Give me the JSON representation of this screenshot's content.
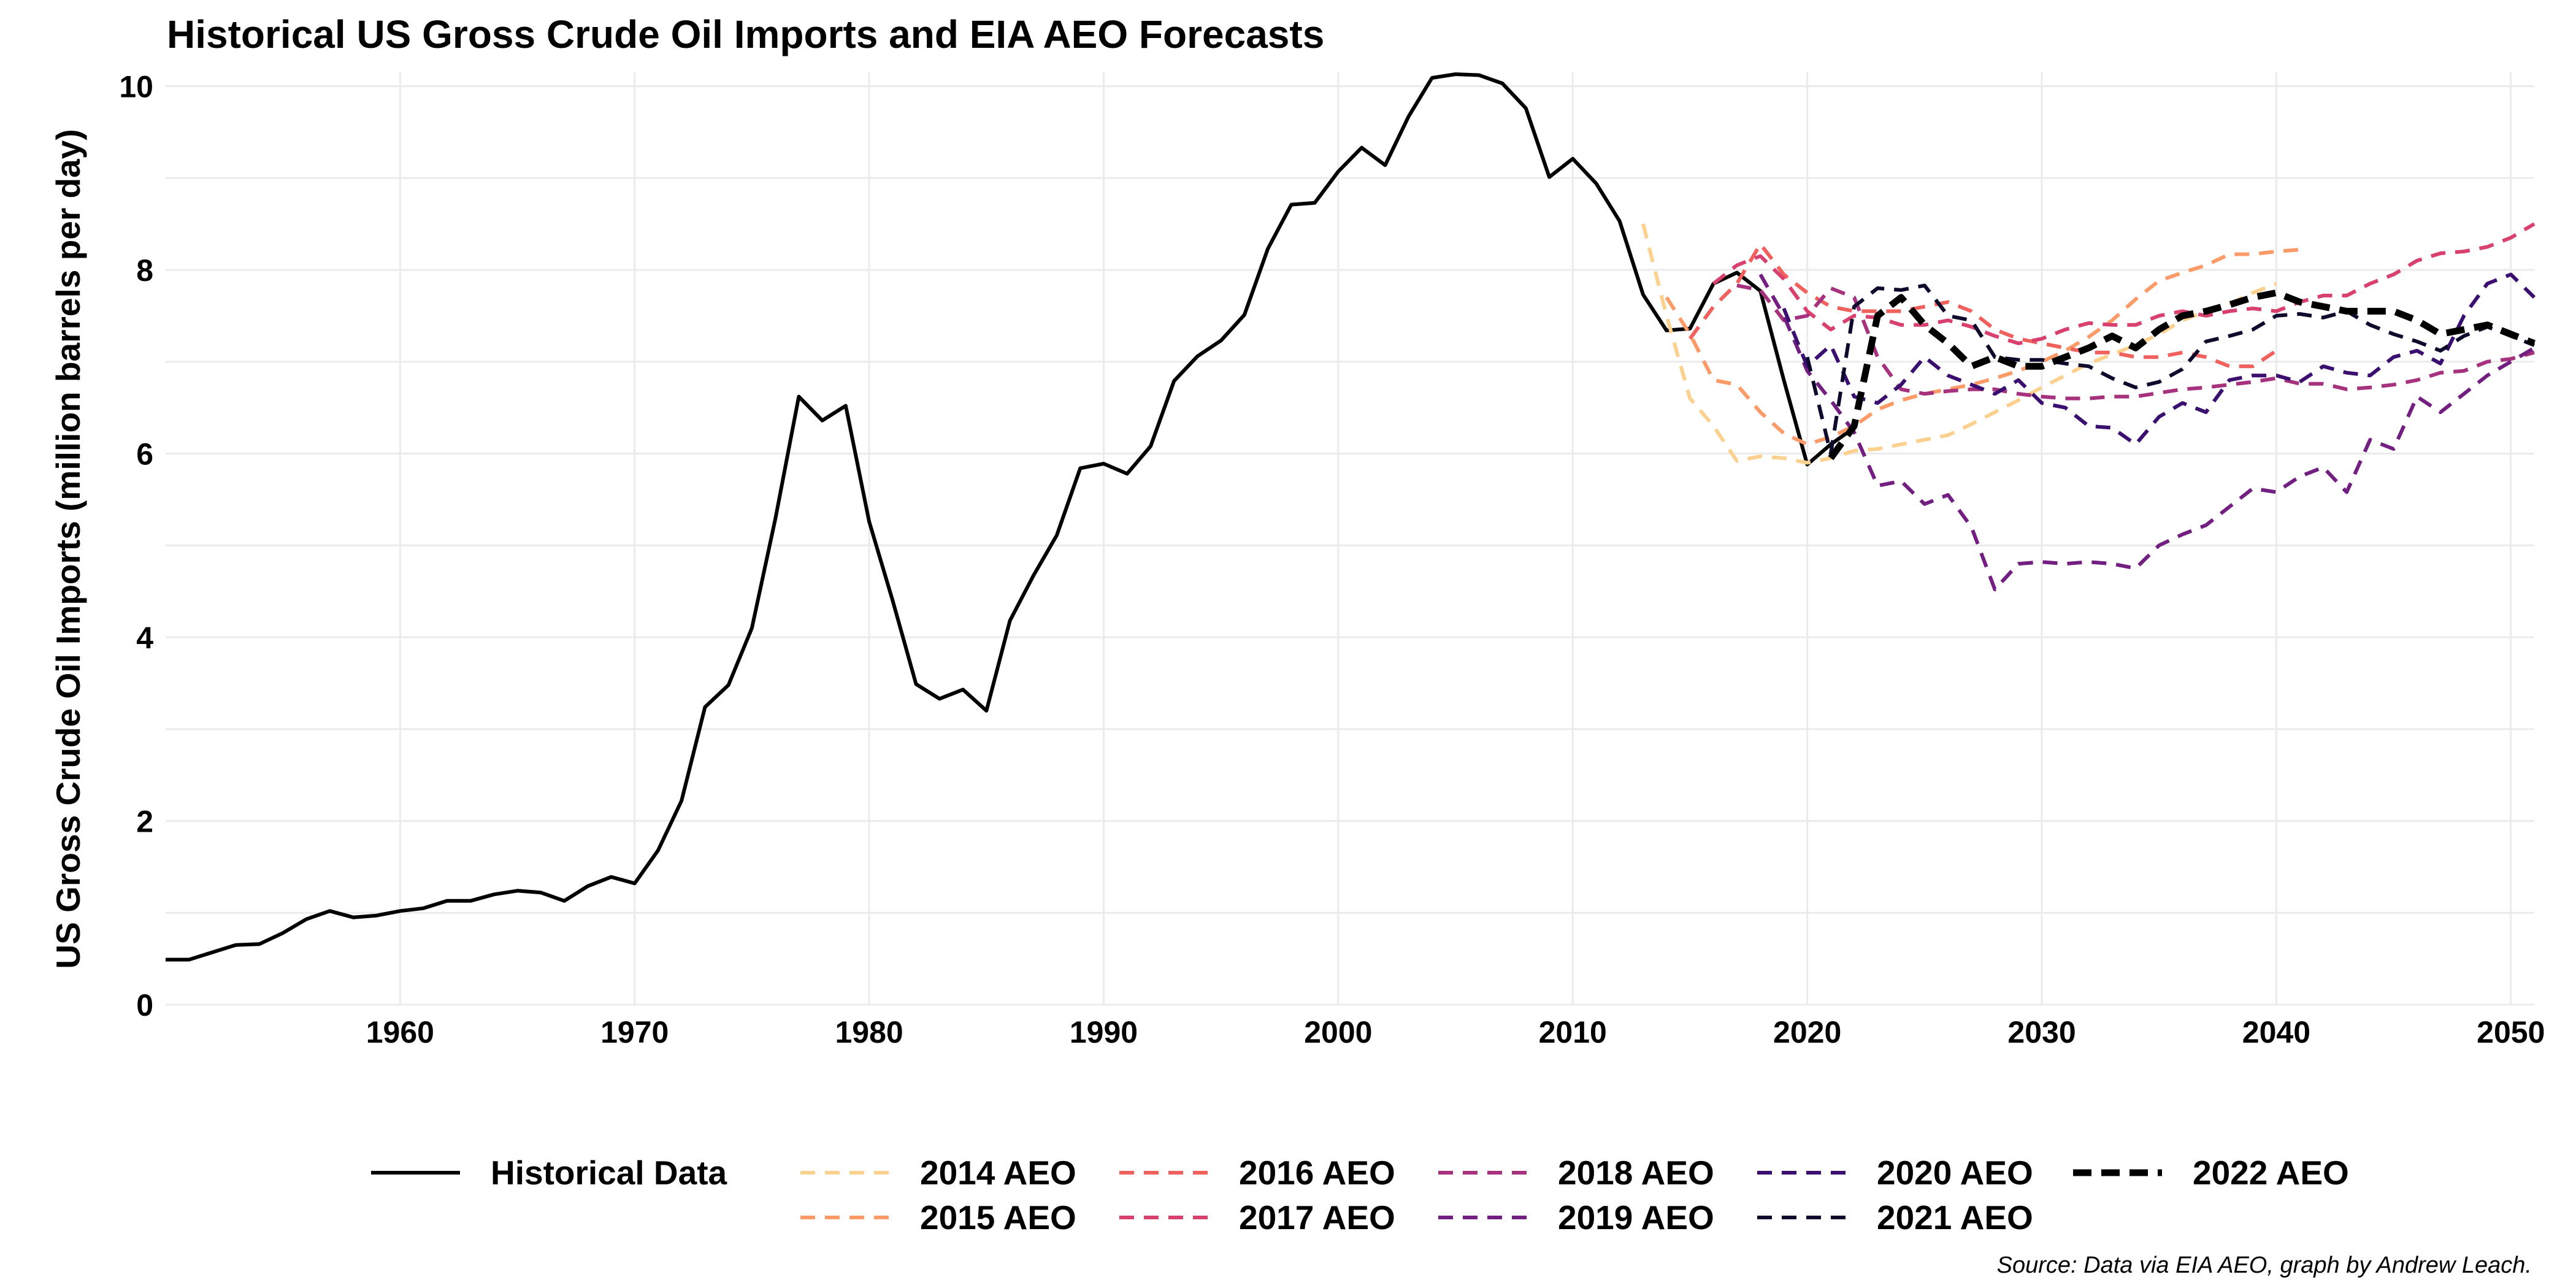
{
  "chart_data": {
    "type": "line",
    "title": "Historical US Gross Crude Oil Imports and EIA AEO Forecasts",
    "xlabel": "",
    "ylabel": "US Gross Crude Oil Imports (million barrels per day)",
    "xlim": [
      1950,
      2051
    ],
    "ylim": [
      0,
      10.15
    ],
    "x_ticks": [
      1960,
      1970,
      1980,
      1990,
      2000,
      2010,
      2020,
      2030,
      2040,
      2050
    ],
    "y_ticks": [
      0,
      2,
      4,
      6,
      8,
      10
    ],
    "grid": true,
    "legend_position": "bottom",
    "caption": "Source: Data via EIA AEO, graph by Andrew Leach.",
    "series": [
      {
        "name": "Historical Data",
        "color": "#000000",
        "dash": "solid",
        "width": 6,
        "x": [
          1950,
          1951,
          1952,
          1953,
          1954,
          1955,
          1956,
          1957,
          1958,
          1959,
          1960,
          1961,
          1962,
          1963,
          1964,
          1965,
          1966,
          1967,
          1968,
          1969,
          1970,
          1971,
          1972,
          1973,
          1974,
          1975,
          1976,
          1977,
          1978,
          1979,
          1980,
          1981,
          1982,
          1983,
          1984,
          1985,
          1986,
          1987,
          1988,
          1989,
          1990,
          1991,
          1992,
          1993,
          1994,
          1995,
          1996,
          1997,
          1998,
          1999,
          2000,
          2001,
          2002,
          2003,
          2004,
          2005,
          2006,
          2007,
          2008,
          2009,
          2010,
          2011,
          2012,
          2013,
          2014,
          2015,
          2016,
          2017,
          2018,
          2019,
          2020,
          2021,
          2022
        ],
        "y": [
          0.49,
          0.49,
          0.57,
          0.65,
          0.66,
          0.78,
          0.93,
          1.02,
          0.95,
          0.97,
          1.02,
          1.05,
          1.13,
          1.13,
          1.2,
          1.24,
          1.22,
          1.13,
          1.29,
          1.39,
          1.32,
          1.68,
          2.22,
          3.24,
          3.48,
          4.1,
          5.29,
          6.62,
          6.36,
          6.52,
          5.26,
          4.4,
          3.49,
          3.33,
          3.43,
          3.2,
          4.18,
          4.67,
          5.11,
          5.84,
          5.89,
          5.78,
          6.08,
          6.79,
          7.06,
          7.23,
          7.51,
          8.23,
          8.71,
          8.73,
          9.07,
          9.33,
          9.14,
          9.67,
          10.09,
          10.13,
          10.12,
          10.03,
          9.76,
          9.01,
          9.21,
          8.94,
          8.53,
          7.73,
          7.34,
          7.36,
          7.85,
          7.97,
          7.77,
          6.8,
          5.88,
          6.1,
          6.28
        ]
      },
      {
        "name": "2014 AEO",
        "color": "#fcd18f",
        "dash": "dashed",
        "width": 6,
        "x": [
          2013,
          2014,
          2015,
          2016,
          2017,
          2018,
          2019,
          2020,
          2021,
          2022,
          2023,
          2024,
          2025,
          2026,
          2027,
          2028,
          2029,
          2030,
          2031,
          2032,
          2033,
          2034,
          2035,
          2036,
          2037,
          2038,
          2039,
          2040
        ],
        "y": [
          8.5,
          7.5,
          6.6,
          6.3,
          5.92,
          5.97,
          5.95,
          5.9,
          5.95,
          6.03,
          6.05,
          6.1,
          6.15,
          6.2,
          6.32,
          6.45,
          6.58,
          6.72,
          6.85,
          6.98,
          7.08,
          7.18,
          7.3,
          7.45,
          7.55,
          7.63,
          7.75,
          7.85
        ]
      },
      {
        "name": "2015 AEO",
        "color": "#fc9a68",
        "dash": "dashed",
        "width": 6,
        "x": [
          2014,
          2015,
          2016,
          2017,
          2018,
          2019,
          2020,
          2021,
          2022,
          2023,
          2024,
          2025,
          2026,
          2027,
          2028,
          2029,
          2030,
          2031,
          2032,
          2033,
          2034,
          2035,
          2036,
          2037,
          2038,
          2039,
          2040,
          2041
        ],
        "y": [
          7.7,
          7.3,
          6.8,
          6.75,
          6.45,
          6.22,
          6.1,
          6.18,
          6.3,
          6.48,
          6.58,
          6.65,
          6.7,
          6.75,
          6.82,
          6.9,
          7.0,
          7.12,
          7.27,
          7.45,
          7.68,
          7.88,
          7.97,
          8.05,
          8.17,
          8.17,
          8.2,
          8.22
        ]
      },
      {
        "name": "2016 AEO",
        "color": "#f0605d",
        "dash": "dashed",
        "width": 6,
        "x": [
          2015,
          2016,
          2017,
          2018,
          2019,
          2020,
          2021,
          2022,
          2023,
          2024,
          2025,
          2026,
          2027,
          2028,
          2029,
          2030,
          2031,
          2032,
          2033,
          2034,
          2035,
          2036,
          2037,
          2038,
          2039,
          2040
        ],
        "y": [
          7.25,
          7.6,
          7.85,
          8.28,
          7.95,
          7.75,
          7.6,
          7.55,
          7.55,
          7.55,
          7.6,
          7.65,
          7.55,
          7.35,
          7.25,
          7.2,
          7.15,
          7.1,
          7.1,
          7.05,
          7.05,
          7.1,
          7.05,
          6.95,
          6.95,
          7.12
        ]
      },
      {
        "name": "2017 AEO",
        "color": "#d8416e",
        "dash": "dashed",
        "width": 6,
        "x": [
          2016,
          2017,
          2018,
          2019,
          2020,
          2021,
          2022,
          2023,
          2024,
          2025,
          2026,
          2027,
          2028,
          2029,
          2030,
          2031,
          2032,
          2033,
          2034,
          2035,
          2036,
          2037,
          2038,
          2039,
          2040,
          2041,
          2042,
          2043,
          2044,
          2045,
          2046,
          2047,
          2048,
          2049,
          2050,
          2051
        ],
        "y": [
          7.85,
          8.05,
          8.15,
          7.9,
          7.55,
          7.35,
          7.5,
          7.48,
          7.4,
          7.4,
          7.45,
          7.38,
          7.28,
          7.2,
          7.25,
          7.35,
          7.42,
          7.4,
          7.4,
          7.5,
          7.55,
          7.5,
          7.55,
          7.58,
          7.55,
          7.65,
          7.72,
          7.72,
          7.85,
          7.95,
          8.1,
          8.18,
          8.2,
          8.25,
          8.35,
          8.5
        ]
      },
      {
        "name": "2018 AEO",
        "color": "#a6317d",
        "dash": "dashed",
        "width": 6,
        "x": [
          2017,
          2018,
          2019,
          2020,
          2021,
          2022,
          2023,
          2024,
          2025,
          2026,
          2027,
          2028,
          2029,
          2030,
          2031,
          2032,
          2033,
          2034,
          2035,
          2036,
          2037,
          2038,
          2039,
          2040,
          2041,
          2042,
          2043,
          2044,
          2045,
          2046,
          2047,
          2048,
          2049,
          2050,
          2051
        ],
        "y": [
          7.83,
          7.78,
          7.45,
          7.5,
          7.8,
          7.7,
          7.05,
          6.7,
          6.65,
          6.68,
          6.7,
          6.7,
          6.65,
          6.62,
          6.6,
          6.6,
          6.62,
          6.62,
          6.66,
          6.7,
          6.72,
          6.75,
          6.78,
          6.82,
          6.76,
          6.76,
          6.7,
          6.72,
          6.75,
          6.8,
          6.88,
          6.9,
          7.0,
          7.03,
          7.1
        ]
      },
      {
        "name": "2019 AEO",
        "color": "#721f81",
        "dash": "dashed",
        "width": 6,
        "x": [
          2018,
          2019,
          2020,
          2021,
          2022,
          2023,
          2024,
          2025,
          2026,
          2027,
          2028,
          2029,
          2030,
          2031,
          2032,
          2033,
          2034,
          2035,
          2036,
          2037,
          2038,
          2039,
          2040,
          2041,
          2042,
          2043,
          2044,
          2045,
          2046,
          2047,
          2048,
          2049,
          2050,
          2051
        ],
        "y": [
          7.95,
          7.5,
          6.9,
          6.58,
          6.23,
          5.65,
          5.7,
          5.45,
          5.55,
          5.2,
          4.52,
          4.8,
          4.82,
          4.8,
          4.82,
          4.8,
          4.75,
          5.0,
          5.12,
          5.22,
          5.42,
          5.62,
          5.58,
          5.75,
          5.85,
          5.58,
          6.15,
          6.05,
          6.62,
          6.45,
          6.65,
          6.85,
          7.0,
          7.15
        ]
      },
      {
        "name": "2020 AEO",
        "color": "#3b0f70",
        "dash": "dashed",
        "width": 6,
        "x": [
          2019,
          2020,
          2021,
          2022,
          2023,
          2024,
          2025,
          2026,
          2027,
          2028,
          2029,
          2030,
          2031,
          2032,
          2033,
          2034,
          2035,
          2036,
          2037,
          2038,
          2039,
          2040,
          2041,
          2042,
          2043,
          2044,
          2045,
          2046,
          2047,
          2048,
          2049,
          2050,
          2051
        ],
        "y": [
          7.58,
          6.95,
          7.18,
          6.62,
          6.55,
          6.75,
          7.05,
          6.85,
          6.75,
          6.65,
          6.8,
          6.55,
          6.5,
          6.3,
          6.28,
          6.1,
          6.4,
          6.55,
          6.45,
          6.8,
          6.85,
          6.85,
          6.78,
          6.95,
          6.88,
          6.85,
          7.05,
          7.12,
          6.98,
          7.5,
          7.85,
          7.95,
          7.7
        ]
      },
      {
        "name": "2021 AEO",
        "color": "#0d0a2c",
        "dash": "dashed",
        "width": 6,
        "x": [
          2020,
          2021,
          2022,
          2023,
          2024,
          2025,
          2026,
          2027,
          2028,
          2029,
          2030,
          2031,
          2032,
          2033,
          2034,
          2035,
          2036,
          2037,
          2038,
          2039,
          2040,
          2041,
          2042,
          2043,
          2044,
          2045,
          2046,
          2047,
          2048,
          2049,
          2050,
          2051
        ],
        "y": [
          7.05,
          6.0,
          7.6,
          7.8,
          7.78,
          7.83,
          7.5,
          7.45,
          7.05,
          7.02,
          7.02,
          6.98,
          6.95,
          6.82,
          6.72,
          6.78,
          6.92,
          7.22,
          7.28,
          7.35,
          7.5,
          7.52,
          7.48,
          7.55,
          7.4,
          7.3,
          7.22,
          7.12,
          7.28,
          7.38,
          7.28,
          7.18
        ]
      },
      {
        "name": "2022 AEO",
        "color": "#000000",
        "dash": "bold-dashed",
        "width": 11,
        "x": [
          2021,
          2022,
          2023,
          2024,
          2025,
          2026,
          2027,
          2028,
          2029,
          2030,
          2031,
          2032,
          2033,
          2034,
          2035,
          2036,
          2037,
          2038,
          2039,
          2040,
          2041,
          2042,
          2043,
          2044,
          2045,
          2046,
          2047,
          2048,
          2049,
          2050,
          2051
        ],
        "y": [
          5.95,
          6.3,
          7.5,
          7.7,
          7.4,
          7.2,
          6.95,
          7.05,
          6.95,
          6.95,
          7.05,
          7.15,
          7.28,
          7.15,
          7.35,
          7.5,
          7.55,
          7.62,
          7.7,
          7.75,
          7.65,
          7.6,
          7.55,
          7.55,
          7.55,
          7.45,
          7.3,
          7.35,
          7.4,
          7.3,
          7.2
        ]
      }
    ]
  }
}
